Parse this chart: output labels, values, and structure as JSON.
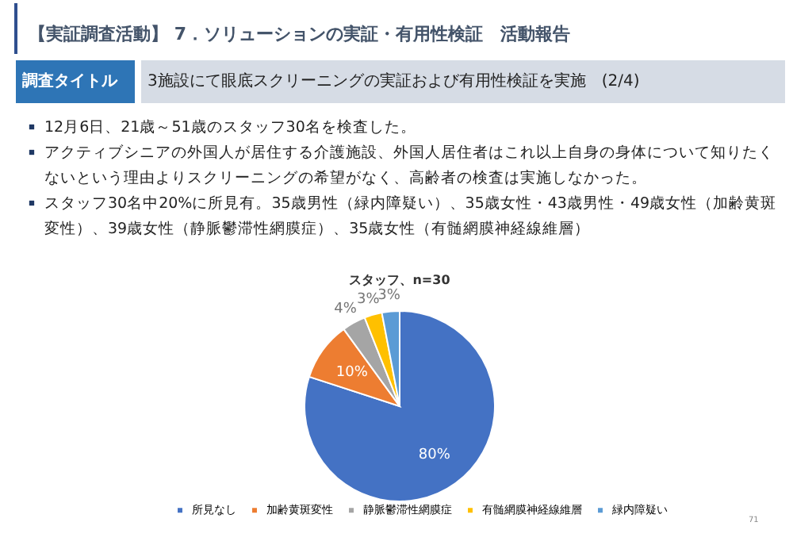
{
  "chart_data": {
    "type": "pie",
    "title": "スタッフ、n=30",
    "categories": [
      "所見なし",
      "加齢黄斑変性",
      "静脈鬱滞性網膜症",
      "有髄網膜神経線維層",
      "緑内障疑い"
    ],
    "values": [
      80,
      10,
      4,
      3,
      3
    ],
    "colors": [
      "#4472c4",
      "#ed7d31",
      "#a5a5a5",
      "#ffc000",
      "#5b9bd5"
    ],
    "value_labels": [
      "80%",
      "10%",
      "4%",
      "3%",
      "3%"
    ],
    "legend": "bottom",
    "annotations": [
      "【実証調査活動】 7．ソリューションの実証・有用性検証　活動報告",
      "調査タイトル",
      "3施設にて眼底スクリーニングの実証および有用性検証を実施　(2/4)",
      "12月6日、21歳～51歳のスタッフ30名を検査した。",
      "アクティブシニアの外国人が居住する介護施設、外国人居住者はこれ以上自身の身体について知りたくないという理由よりスクリーニングの希望がなく、高齢者の検査は実施しなかった。",
      "スタッフ30名中20%に所見有。35歳男性（緑内障疑い）、35歳女性・43歳男性・49歳女性（加齢黄斑変性）、39歳女性（静脈鬱滞性網膜症）、35歳女性（有髄網膜神経線維層）",
      "71"
    ]
  }
}
